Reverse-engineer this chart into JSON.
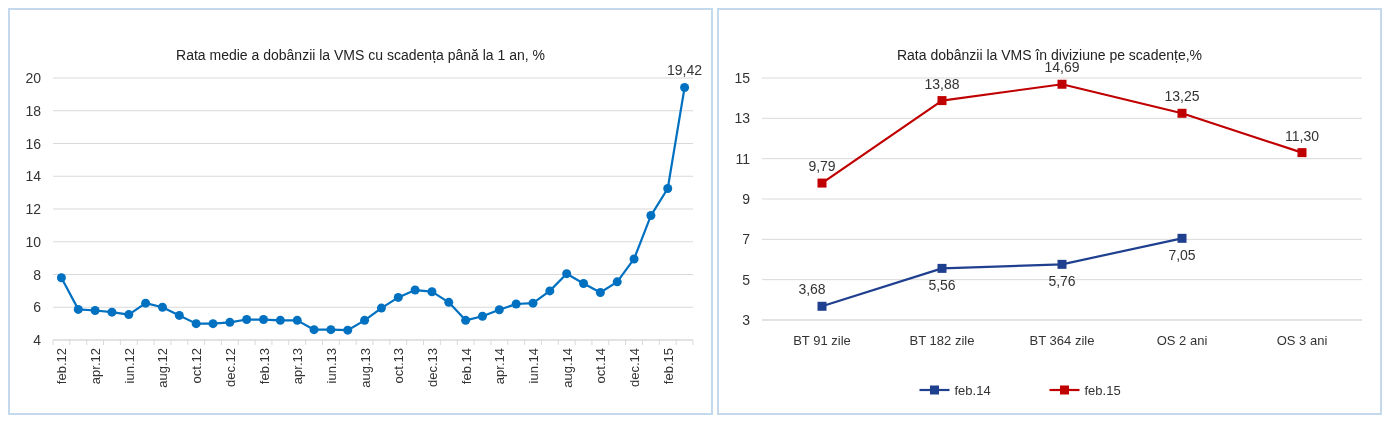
{
  "chart_data": [
    {
      "type": "line",
      "title": "Rata medie a dobânzii la VMS cu scadența până la 1 an, %",
      "categories": [
        "feb.12",
        null,
        "apr.12",
        null,
        "iun.12",
        null,
        "aug.12",
        null,
        "oct.12",
        null,
        "dec.12",
        null,
        "feb.13",
        null,
        "apr.13",
        null,
        "iun.13",
        null,
        "aug.13",
        null,
        "oct.13",
        null,
        "dec.13",
        null,
        "feb.14",
        null,
        "apr.14",
        null,
        "iun.14",
        null,
        "aug.14",
        null,
        "oct.14",
        null,
        "dec.14",
        null,
        "feb.15",
        null
      ],
      "series": [
        {
          "color": "#0070c0",
          "values": [
            7.8,
            5.87,
            5.8,
            5.7,
            5.55,
            6.25,
            6.0,
            5.5,
            5.0,
            5.0,
            5.08,
            5.25,
            5.25,
            5.2,
            5.2,
            4.63,
            4.63,
            4.6,
            5.2,
            5.95,
            6.6,
            7.05,
            6.95,
            6.3,
            5.2,
            5.45,
            5.85,
            6.2,
            6.25,
            7.0,
            8.05,
            7.45,
            6.9,
            7.55,
            8.95,
            11.6,
            13.25,
            19.42
          ],
          "value_labels": [
            null,
            null,
            null,
            null,
            null,
            null,
            null,
            null,
            null,
            null,
            null,
            null,
            null,
            null,
            null,
            null,
            null,
            null,
            null,
            null,
            null,
            null,
            null,
            null,
            null,
            null,
            null,
            null,
            null,
            null,
            null,
            null,
            null,
            null,
            null,
            null,
            null,
            "19,42"
          ]
        }
      ],
      "ylim": [
        4,
        20
      ],
      "yticks": [
        4,
        6,
        8,
        10,
        12,
        14,
        16,
        18,
        20
      ],
      "grid": "y",
      "marker": "circle",
      "legend": false
    },
    {
      "type": "line",
      "title": "Rata dobânzii la VMS în diviziune pe scadențe,%",
      "categories": [
        "BT 91 zile",
        "BT 182 zile",
        "BT 364 zile",
        "OS 2 ani",
        "OS 3 ani"
      ],
      "series": [
        {
          "name": "feb.14",
          "color": "#1f3f8f",
          "values": [
            3.68,
            5.56,
            5.76,
            7.05,
            null
          ],
          "value_labels": [
            "3,68",
            "5,56",
            "5,76",
            "7,05",
            null
          ]
        },
        {
          "name": "feb.15",
          "color": "#c00000",
          "values": [
            9.79,
            13.88,
            14.69,
            13.25,
            11.3
          ],
          "value_labels": [
            "9,79",
            "13,88",
            "14,69",
            "13,25",
            "11,30"
          ]
        }
      ],
      "ylim": [
        3,
        15
      ],
      "yticks": [
        3,
        5,
        7,
        9,
        11,
        13,
        15
      ],
      "grid": "y",
      "marker": "square",
      "legend": "bottom"
    }
  ]
}
